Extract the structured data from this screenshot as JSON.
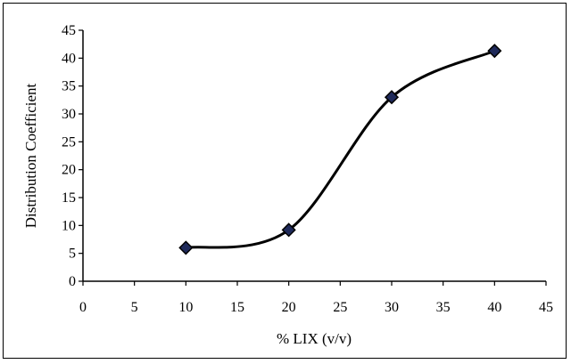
{
  "chart_data": {
    "type": "line",
    "xlabel": "% LIX (v/v)",
    "ylabel": "Distribution Coefficient",
    "xlim": [
      0,
      45
    ],
    "ylim": [
      0,
      45
    ],
    "xticks": [
      0,
      5,
      10,
      15,
      20,
      25,
      30,
      35,
      40,
      45
    ],
    "yticks": [
      0,
      5,
      10,
      15,
      20,
      25,
      30,
      35,
      40,
      45
    ],
    "grid": false,
    "smooth": true,
    "marker": "diamond",
    "colors": {
      "line": "#000000",
      "marker_fill": "#1f2a5a",
      "marker_edge": "#000000"
    },
    "series": [
      {
        "x": [
          10,
          20,
          30,
          40
        ],
        "values": [
          6,
          9.2,
          33,
          41.3
        ]
      }
    ]
  }
}
